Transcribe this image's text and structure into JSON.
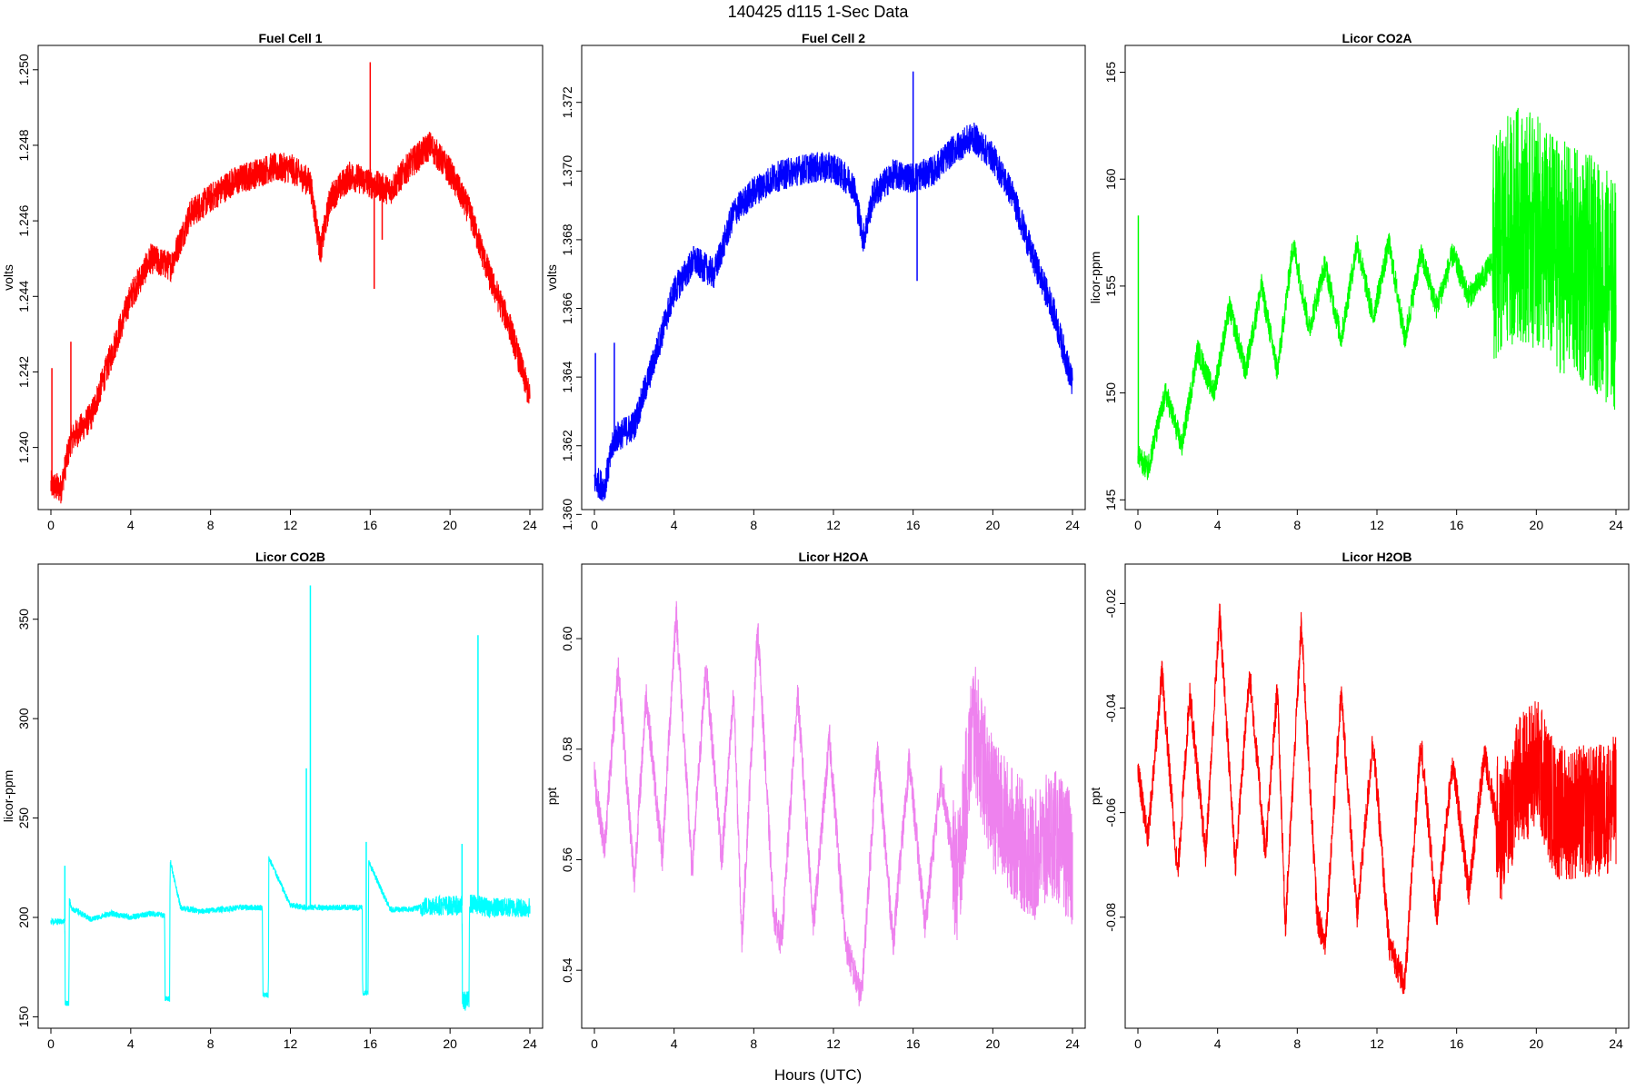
{
  "figure": {
    "title": "140425   d115   1-Sec Data",
    "xlabel": "Hours (UTC)"
  },
  "chart_data": [
    {
      "type": "line",
      "title": "Fuel Cell 1",
      "ylabel": "volts",
      "color": "#ff0000",
      "xlim": [
        0,
        24
      ],
      "xticks": [
        0,
        4,
        8,
        12,
        16,
        20,
        24
      ],
      "ylim": [
        1.2385,
        1.2505
      ],
      "yticks": [
        "1.240",
        "1.242",
        "1.244",
        "1.246",
        "1.248",
        "1.250"
      ],
      "noise": 0.0004,
      "x": [
        0,
        0.5,
        1,
        2,
        3,
        4,
        5,
        6,
        7,
        8,
        9,
        10,
        11,
        12,
        13,
        13.5,
        14,
        15,
        16,
        17,
        18,
        19,
        20,
        21,
        22,
        23,
        24
      ],
      "y": [
        1.239,
        1.2389,
        1.2402,
        1.2408,
        1.2424,
        1.244,
        1.245,
        1.2448,
        1.2462,
        1.2466,
        1.247,
        1.2472,
        1.2474,
        1.2474,
        1.247,
        1.2452,
        1.2466,
        1.2472,
        1.247,
        1.2468,
        1.2475,
        1.248,
        1.2473,
        1.2462,
        1.2445,
        1.2432,
        1.2413
      ],
      "spikes": [
        {
          "x": 0.05,
          "y": 1.2421
        },
        {
          "x": 1.0,
          "y": 1.2428
        },
        {
          "x": 16.0,
          "y": 1.2502
        },
        {
          "x": 16.2,
          "y": 1.2442
        },
        {
          "x": 16.6,
          "y": 1.2455
        }
      ]
    },
    {
      "type": "line",
      "title": "Fuel Cell 2",
      "ylabel": "volts",
      "color": "#0000ff",
      "xlim": [
        0,
        24
      ],
      "xticks": [
        0,
        4,
        8,
        12,
        16,
        20,
        24
      ],
      "ylim": [
        1.3603,
        1.3735
      ],
      "yticks": [
        "1.360",
        "1.362",
        "1.364",
        "1.366",
        "1.368",
        "1.370",
        "1.372"
      ],
      "noise": 0.00045,
      "x": [
        0,
        0.5,
        1,
        2,
        3,
        4,
        5,
        6,
        7,
        8,
        9,
        10,
        11,
        12,
        13,
        13.5,
        14,
        15,
        16,
        17,
        18,
        19,
        20,
        21,
        22,
        23,
        24
      ],
      "y": [
        1.361,
        1.3608,
        1.3622,
        1.3626,
        1.3645,
        1.3665,
        1.3674,
        1.367,
        1.3688,
        1.3694,
        1.3698,
        1.37,
        1.3701,
        1.3701,
        1.3696,
        1.368,
        1.3693,
        1.3699,
        1.3698,
        1.37,
        1.3706,
        1.371,
        1.3704,
        1.3693,
        1.3675,
        1.366,
        1.3638
      ],
      "spikes": [
        {
          "x": 0.05,
          "y": 1.3647
        },
        {
          "x": 1.0,
          "y": 1.365
        },
        {
          "x": 16.0,
          "y": 1.3729
        },
        {
          "x": 16.2,
          "y": 1.3668
        }
      ]
    },
    {
      "type": "line",
      "title": "Licor CO2A",
      "ylabel": "licor-ppm",
      "color": "#00ff00",
      "xlim": [
        0,
        24
      ],
      "xticks": [
        0,
        4,
        8,
        12,
        16,
        20,
        24
      ],
      "ylim": [
        144.8,
        166
      ],
      "yticks": [
        "145",
        "150",
        "155",
        "160",
        "165"
      ],
      "noise": 0.6,
      "x": [
        0,
        0.5,
        1.4,
        2.2,
        3.0,
        3.8,
        4.6,
        5.4,
        6.2,
        7.0,
        7.8,
        8.6,
        9.4,
        10.2,
        11.0,
        11.8,
        12.6,
        13.4,
        14.2,
        15.0,
        15.8,
        16.6,
        17.4,
        18.2,
        19.0,
        20.0,
        21.0,
        22.0,
        23.0,
        24.0
      ],
      "y": [
        147,
        146.5,
        150,
        147.5,
        152,
        150,
        154,
        151,
        155,
        151,
        157,
        153,
        156,
        152.5,
        157,
        153.5,
        157,
        152.5,
        156.5,
        154,
        156.5,
        154.5,
        155.5,
        157,
        158,
        157.5,
        156.5,
        156,
        155.5,
        154.5
      ],
      "heavy_from": 17.8,
      "heavy_amp": 5.5,
      "spikes": [
        {
          "x": 0.02,
          "y": 158.3
        }
      ]
    },
    {
      "type": "line",
      "title": "Licor CO2B",
      "ylabel": "licor-ppm",
      "color": "#00ffff",
      "xlim": [
        0,
        24
      ],
      "xticks": [
        0,
        4,
        8,
        12,
        16,
        20,
        24
      ],
      "ylim": [
        147,
        375
      ],
      "yticks": [
        "150",
        "200",
        "250",
        "300",
        "350"
      ],
      "noise": 1.5,
      "x": [
        0,
        0.7,
        0.72,
        0.9,
        0.92,
        1.0,
        2.0,
        3.0,
        4.0,
        5.0,
        5.7,
        5.72,
        5.95,
        5.97,
        6.5,
        7.5,
        8.5,
        9.5,
        10.6,
        10.62,
        10.9,
        10.92,
        12.0,
        12.8,
        12.85,
        13.0,
        13.05,
        14.0,
        15.5,
        15.6,
        15.62,
        15.9,
        15.92,
        17.0,
        18.0,
        19.0,
        20.6,
        20.62,
        20.95,
        20.97,
        22.0,
        23.0,
        24.0
      ],
      "y": [
        198,
        198,
        157,
        157,
        209,
        205,
        199,
        202,
        200,
        202,
        201,
        159,
        159,
        229,
        205,
        203,
        204,
        205,
        205,
        161,
        161,
        230,
        206,
        205,
        205,
        205,
        205,
        205,
        205,
        205,
        162,
        162,
        228,
        204,
        204,
        206,
        206,
        158,
        158,
        207,
        205,
        205,
        205
      ],
      "heavy_from": 18.5,
      "heavy_amp": 5,
      "spikes": [
        {
          "x": 0.7,
          "y": 226
        },
        {
          "x": 12.8,
          "y": 275
        },
        {
          "x": 13.0,
          "y": 367
        },
        {
          "x": 20.6,
          "y": 237
        },
        {
          "x": 21.4,
          "y": 342
        },
        {
          "x": 15.8,
          "y": 238
        }
      ]
    },
    {
      "type": "line",
      "title": "Licor H2OA",
      "ylabel": "ppt",
      "color": "#ee82ee",
      "xlim": [
        0,
        24
      ],
      "xticks": [
        0,
        4,
        8,
        12,
        16,
        20,
        24
      ],
      "ylim": [
        0.5305,
        0.6125
      ],
      "yticks": [
        "0.54",
        "0.56",
        "0.58",
        "0.60"
      ],
      "noise": 0.003,
      "x": [
        0,
        0.5,
        1.2,
        2.0,
        2.6,
        3.4,
        4.1,
        4.9,
        5.6,
        6.4,
        7.0,
        7.4,
        8.2,
        9.0,
        9.4,
        10.2,
        11.0,
        11.8,
        12.6,
        13.4,
        14.2,
        15.0,
        15.8,
        16.6,
        17.4,
        18.2,
        19.0,
        20.0,
        21.0,
        22.0,
        23.0,
        24.0
      ],
      "y": [
        0.575,
        0.562,
        0.595,
        0.556,
        0.59,
        0.56,
        0.605,
        0.558,
        0.595,
        0.56,
        0.59,
        0.545,
        0.602,
        0.55,
        0.545,
        0.59,
        0.548,
        0.582,
        0.545,
        0.535,
        0.58,
        0.545,
        0.578,
        0.548,
        0.575,
        0.555,
        0.585,
        0.57,
        0.565,
        0.56,
        0.565,
        0.56
      ],
      "heavy_from": 18.0,
      "heavy_amp": 0.012,
      "spikes": []
    },
    {
      "type": "line",
      "title": "Licor H2OB",
      "ylabel": "ppt",
      "color": "#ff0000",
      "xlim": [
        0,
        24
      ],
      "xticks": [
        0,
        4,
        8,
        12,
        16,
        20,
        24
      ],
      "ylim": [
        -0.1002,
        -0.0135
      ],
      "yticks": [
        "-0.08",
        "-0.06",
        "-0.04",
        "-0.02"
      ],
      "noise": 0.003,
      "x": [
        0,
        0.5,
        1.2,
        2.0,
        2.6,
        3.4,
        4.1,
        4.9,
        5.6,
        6.4,
        7.0,
        7.4,
        8.2,
        9.0,
        9.4,
        10.2,
        11.0,
        11.8,
        12.6,
        13.4,
        14.2,
        15.0,
        15.8,
        16.6,
        17.4,
        18.2,
        19.0,
        20.0,
        21.0,
        22.0,
        23.0,
        24.0
      ],
      "y": [
        -0.052,
        -0.065,
        -0.033,
        -0.072,
        -0.037,
        -0.068,
        -0.022,
        -0.07,
        -0.033,
        -0.068,
        -0.036,
        -0.082,
        -0.024,
        -0.08,
        -0.085,
        -0.037,
        -0.08,
        -0.046,
        -0.085,
        -0.093,
        -0.046,
        -0.08,
        -0.05,
        -0.075,
        -0.049,
        -0.065,
        -0.055,
        -0.05,
        -0.06,
        -0.06,
        -0.06,
        -0.058
      ],
      "heavy_from": 18.0,
      "heavy_amp": 0.013,
      "spikes": []
    }
  ]
}
